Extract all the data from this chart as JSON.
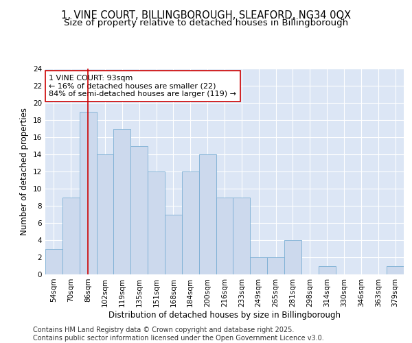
{
  "title_line1": "1, VINE COURT, BILLINGBOROUGH, SLEAFORD, NG34 0QX",
  "title_line2": "Size of property relative to detached houses in Billingborough",
  "xlabel": "Distribution of detached houses by size in Billingborough",
  "ylabel": "Number of detached properties",
  "categories": [
    "54sqm",
    "70sqm",
    "86sqm",
    "102sqm",
    "119sqm",
    "135sqm",
    "151sqm",
    "168sqm",
    "184sqm",
    "200sqm",
    "216sqm",
    "233sqm",
    "249sqm",
    "265sqm",
    "281sqm",
    "298sqm",
    "314sqm",
    "330sqm",
    "346sqm",
    "363sqm",
    "379sqm"
  ],
  "values": [
    3,
    9,
    19,
    14,
    17,
    15,
    12,
    7,
    12,
    14,
    9,
    9,
    2,
    2,
    4,
    0,
    1,
    0,
    0,
    0,
    1
  ],
  "bar_color": "#ccd9ed",
  "bar_edge_color": "#7bafd4",
  "highlight_index": 2,
  "highlight_line_color": "#cc0000",
  "annotation_text": "1 VINE COURT: 93sqm\n← 16% of detached houses are smaller (22)\n84% of semi-detached houses are larger (119) →",
  "annotation_box_color": "#ffffff",
  "annotation_box_edge_color": "#cc0000",
  "ylim": [
    0,
    24
  ],
  "yticks": [
    0,
    2,
    4,
    6,
    8,
    10,
    12,
    14,
    16,
    18,
    20,
    22,
    24
  ],
  "background_color": "#dce6f5",
  "grid_color": "#ffffff",
  "footer_text": "Contains HM Land Registry data © Crown copyright and database right 2025.\nContains public sector information licensed under the Open Government Licence v3.0.",
  "title_fontsize": 10.5,
  "subtitle_fontsize": 9.5,
  "axis_label_fontsize": 8.5,
  "tick_fontsize": 7.5,
  "annotation_fontsize": 8,
  "footer_fontsize": 7
}
